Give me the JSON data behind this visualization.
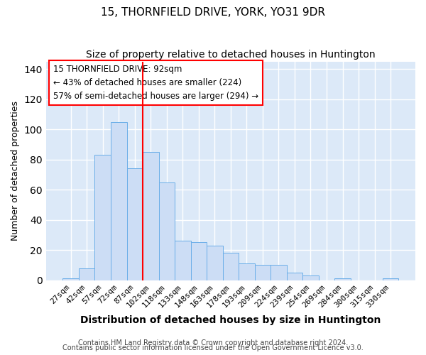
{
  "title": "15, THORNFIELD DRIVE, YORK, YO31 9DR",
  "subtitle": "Size of property relative to detached houses in Huntington",
  "xlabel": "Distribution of detached houses by size in Huntington",
  "ylabel": "Number of detached properties",
  "bar_labels": [
    "27sqm",
    "42sqm",
    "57sqm",
    "72sqm",
    "87sqm",
    "102sqm",
    "118sqm",
    "133sqm",
    "148sqm",
    "163sqm",
    "178sqm",
    "193sqm",
    "209sqm",
    "224sqm",
    "239sqm",
    "254sqm",
    "269sqm",
    "284sqm",
    "300sqm",
    "315sqm",
    "330sqm"
  ],
  "bar_values": [
    1,
    8,
    83,
    105,
    74,
    85,
    65,
    26,
    25,
    23,
    18,
    11,
    10,
    10,
    5,
    3,
    0,
    1,
    0,
    0,
    1
  ],
  "bar_color": "#ccddf5",
  "bar_edge_color": "#6aaee8",
  "vline_x": 4.5,
  "vline_color": "red",
  "ylim": [
    0,
    145
  ],
  "yticks": [
    0,
    20,
    40,
    60,
    80,
    100,
    120,
    140
  ],
  "annotation_line1": "15 THORNFIELD DRIVE: 92sqm",
  "annotation_line2": "← 43% of detached houses are smaller (224)",
  "annotation_line3": "57% of semi-detached houses are larger (294) →",
  "annotation_box_facecolor": "white",
  "annotation_box_edgecolor": "red",
  "footer1": "Contains HM Land Registry data © Crown copyright and database right 2024.",
  "footer2": "Contains public sector information licensed under the Open Government Licence v3.0.",
  "fig_facecolor": "white",
  "axes_facecolor": "#dce9f8",
  "grid_color": "white",
  "title_fontsize": 11,
  "subtitle_fontsize": 10,
  "xlabel_fontsize": 10,
  "ylabel_fontsize": 9,
  "tick_fontsize": 8,
  "annotation_fontsize": 8.5,
  "footer_fontsize": 7
}
